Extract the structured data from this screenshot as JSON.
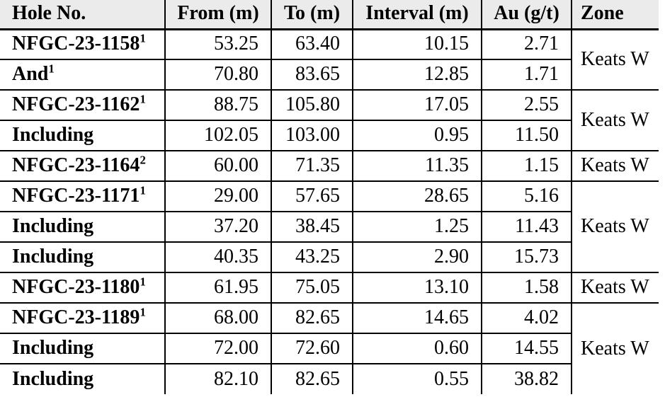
{
  "page": {
    "background_color": "#ffffff",
    "text_color": "#000000",
    "header_background_color": "#EBEBEB",
    "border_color": "#000000"
  },
  "table": {
    "columns": [
      {
        "key": "hole",
        "label": "Hole No."
      },
      {
        "key": "from",
        "label": "From (m)"
      },
      {
        "key": "to",
        "label": "To (m)"
      },
      {
        "key": "interval",
        "label": "Interval (m)"
      },
      {
        "key": "au",
        "label": "Au (g/t)"
      },
      {
        "key": "zone",
        "label": "Zone"
      }
    ],
    "rows": [
      {
        "hole": "NFGC-23-1158",
        "sup": "1",
        "from": "53.25",
        "to": "63.40",
        "interval": "10.15",
        "au": "2.71",
        "zone": "Keats W",
        "zone_rowspan": 2
      },
      {
        "hole": "And",
        "sup": "1",
        "from": "70.80",
        "to": "83.65",
        "interval": "12.85",
        "au": "1.71"
      },
      {
        "hole": "NFGC-23-1162",
        "sup": "1",
        "from": "88.75",
        "to": "105.80",
        "interval": "17.05",
        "au": "2.55",
        "zone": "Keats W",
        "zone_rowspan": 2
      },
      {
        "hole": "Including",
        "from": "102.05",
        "to": "103.00",
        "interval": "0.95",
        "au": "11.50"
      },
      {
        "hole": "NFGC-23-1164",
        "sup": "2",
        "from": "60.00",
        "to": "71.35",
        "interval": "11.35",
        "au": "1.15",
        "zone": "Keats W",
        "zone_rowspan": 1
      },
      {
        "hole": "NFGC-23-1171",
        "sup": "1",
        "from": "29.00",
        "to": "57.65",
        "interval": "28.65",
        "au": "5.16",
        "zone": "Keats W",
        "zone_rowspan": 3
      },
      {
        "hole": "Including",
        "from": "37.20",
        "to": "38.45",
        "interval": "1.25",
        "au": "11.43"
      },
      {
        "hole": "Including",
        "from": "40.35",
        "to": "43.25",
        "interval": "2.90",
        "au": "15.73"
      },
      {
        "hole": "NFGC-23-1180",
        "sup": "1",
        "from": "61.95",
        "to": "75.05",
        "interval": "13.10",
        "au": "1.58",
        "zone": "Keats W",
        "zone_rowspan": 1
      },
      {
        "hole": "NFGC-23-1189",
        "sup": "1",
        "from": "68.00",
        "to": "82.65",
        "interval": "14.65",
        "au": "4.02",
        "zone": "Keats W",
        "zone_rowspan": 3
      },
      {
        "hole": "Including",
        "from": "72.00",
        "to": "72.60",
        "interval": "0.60",
        "au": "14.55"
      },
      {
        "hole": "Including",
        "from": "82.10",
        "to": "82.65",
        "interval": "0.55",
        "au": "38.82"
      }
    ]
  }
}
